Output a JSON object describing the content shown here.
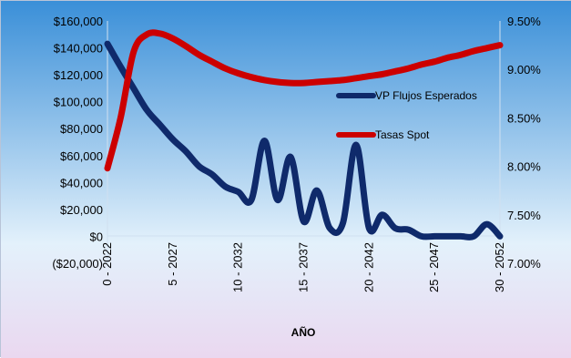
{
  "chart_data": {
    "type": "line",
    "title": "",
    "xlabel": "AÑO",
    "x_ticks": [
      "0 - 2022",
      "5 - 2027",
      "10 - 2032",
      "15 - 2037",
      "20 - 2042",
      "25 - 2047",
      "30 - 2052"
    ],
    "x": [
      0,
      1,
      2,
      3,
      4,
      5,
      6,
      7,
      8,
      9,
      10,
      11,
      12,
      13,
      14,
      15,
      16,
      17,
      18,
      19,
      20,
      21,
      22,
      23,
      24,
      25,
      26,
      27,
      28,
      29,
      30
    ],
    "y_left_ticks": [
      "$160,000",
      "$140,000",
      "$120,000",
      "$100,000",
      "$80,000",
      "$60,000",
      "$40,000",
      "$20,000",
      "$0",
      "($20,000)"
    ],
    "y_left_range": [
      -20000,
      160000
    ],
    "y_right_ticks": [
      "9.50%",
      "9.00%",
      "8.50%",
      "8.00%",
      "7.50%",
      "7.00%"
    ],
    "y_right_range": [
      7.0,
      9.5
    ],
    "series": [
      {
        "name": "VP Flujos Esperados",
        "axis": "left",
        "color": "#0f2a6b",
        "values": [
          143000,
          126000,
          110000,
          94000,
          83000,
          72000,
          63000,
          52000,
          46000,
          37000,
          33000,
          27000,
          71000,
          27000,
          59000,
          11000,
          34000,
          6000,
          10000,
          68000,
          6000,
          16000,
          6000,
          5000,
          0,
          0,
          0,
          0,
          0,
          9000,
          0
        ]
      },
      {
        "name": "Tasas Spot",
        "axis": "right",
        "color": "#cc0000",
        "values": [
          7.98,
          8.5,
          9.18,
          9.36,
          9.37,
          9.32,
          9.24,
          9.15,
          9.08,
          9.01,
          8.96,
          8.92,
          8.89,
          8.87,
          8.86,
          8.86,
          8.87,
          8.88,
          8.89,
          8.91,
          8.93,
          8.95,
          8.98,
          9.01,
          9.05,
          9.08,
          9.12,
          9.15,
          9.19,
          9.22,
          9.25
        ]
      }
    ],
    "legend_position": "right-inside",
    "grid": false,
    "background": {
      "plot_top": "#3a8fd8",
      "plot_bottom": "#e3f1fb",
      "outer_bottom": "#ead8f0"
    }
  }
}
